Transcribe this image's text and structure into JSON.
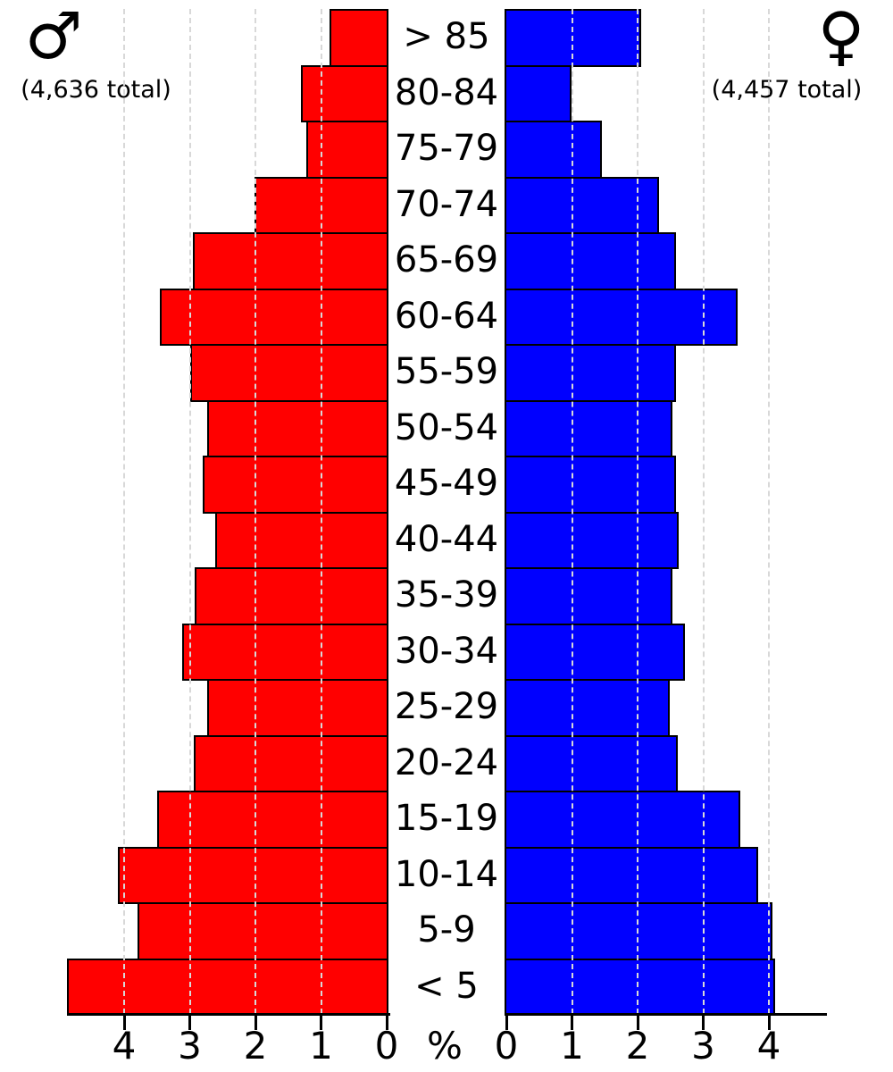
{
  "male_header": {
    "symbol": "♂",
    "total_label": "(4,636 total)"
  },
  "female_header": {
    "symbol": "♀",
    "total_label": "(4,457 total)"
  },
  "axis": {
    "percent_label": "%",
    "left_tick_labels": [
      "4",
      "3",
      "2",
      "1",
      "0"
    ],
    "right_tick_labels": [
      "0",
      "1",
      "2",
      "3",
      "4"
    ]
  },
  "colors": {
    "male": "#ff0000",
    "female": "#0000ff",
    "bar_border": "#000000",
    "grid": "#d8d8d8",
    "axis": "#000000"
  },
  "chart_data": {
    "type": "bar",
    "orientation": "horizontal-pyramid",
    "categories": [
      "> 85",
      "80-84",
      "75-79",
      "70-74",
      "65-69",
      "60-64",
      "55-59",
      "50-54",
      "45-49",
      "40-44",
      "35-39",
      "30-34",
      "25-29",
      "20-24",
      "15-19",
      "10-14",
      "5-9",
      "< 5"
    ],
    "series": [
      {
        "name": "Male",
        "symbol": "♂",
        "total": "(4,636 total)",
        "color": "#ff0000",
        "side": "left",
        "values": [
          0.87,
          1.31,
          1.23,
          2.02,
          2.95,
          3.45,
          3.0,
          2.73,
          2.8,
          2.61,
          2.93,
          3.12,
          2.73,
          2.94,
          3.5,
          4.09,
          3.8,
          4.87
        ]
      },
      {
        "name": "Female",
        "symbol": "♀",
        "total": "(4,457 total)",
        "color": "#0000ff",
        "side": "right",
        "values": [
          2.05,
          0.99,
          1.46,
          2.32,
          2.58,
          3.52,
          2.58,
          2.53,
          2.58,
          2.62,
          2.53,
          2.72,
          2.49,
          2.61,
          3.57,
          3.84,
          4.06,
          4.1
        ]
      }
    ],
    "xlabel": "%",
    "xlim": [
      0,
      4.9
    ],
    "x_ticks": [
      0,
      1,
      2,
      3,
      4
    ],
    "grid": true,
    "gridline_values": [
      1,
      2,
      3,
      4
    ],
    "grid_style": "dashed",
    "legend_position": "none"
  }
}
